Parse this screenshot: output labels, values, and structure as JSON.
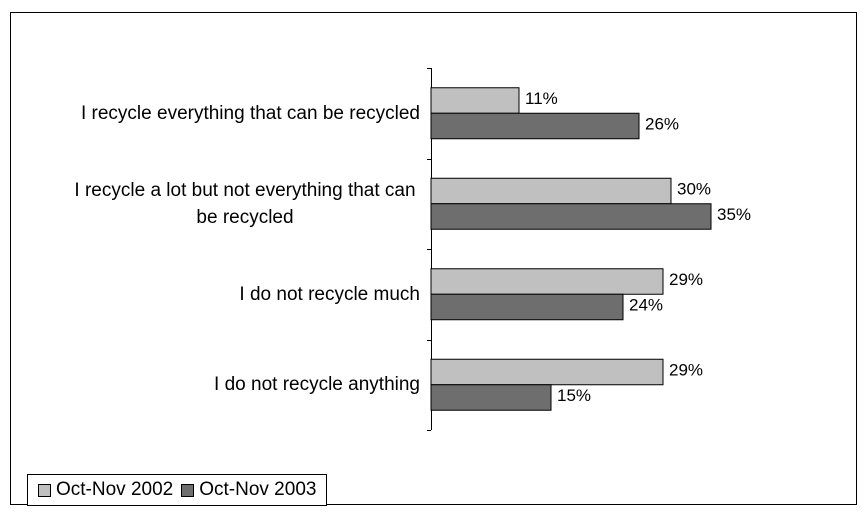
{
  "chart_data": {
    "type": "hbar",
    "categories": [
      "I recycle everything that can be recycled",
      "I recycle a lot but not everything that can be recycled",
      "I do not recycle much",
      "I do not recycle anything"
    ],
    "series": [
      {
        "name": "Oct-Nov 2002",
        "color": "#c0c0c0",
        "values": [
          11,
          30,
          29,
          29
        ],
        "value_labels": [
          "11%",
          "30%",
          "29%",
          "29%"
        ]
      },
      {
        "name": "Oct-Nov 2003",
        "color": "#6e6e6e",
        "values": [
          26,
          35,
          24,
          15
        ],
        "value_labels": [
          "26%",
          "35%",
          "24%",
          "15%"
        ]
      }
    ],
    "xlim": [
      0,
      53
    ],
    "legend": "bottom-left"
  }
}
